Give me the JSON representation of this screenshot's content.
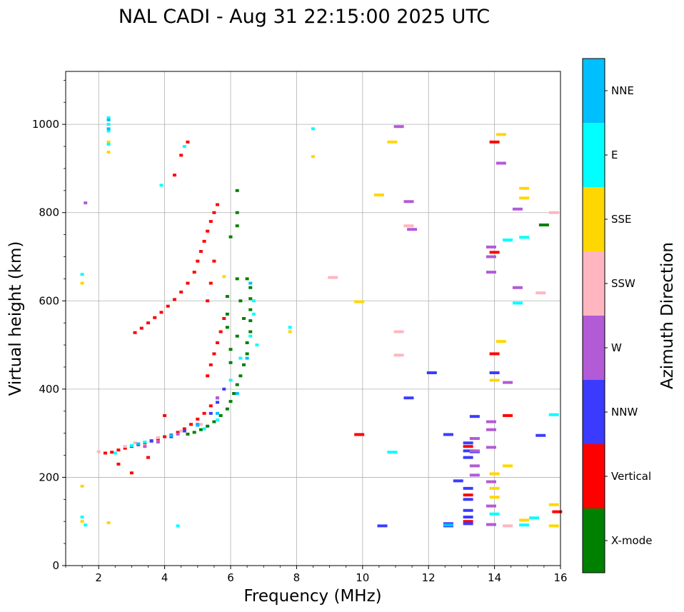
{
  "chart_data": {
    "type": "scatter",
    "title": "NAL CADI - Aug 31 22:15:00 2025 UTC",
    "xlabel": "Frequency (MHz)",
    "ylabel": "Virtual height (km)",
    "xlim": [
      1,
      16
    ],
    "ylim": [
      0,
      1120
    ],
    "xticks": [
      2,
      4,
      6,
      8,
      10,
      12,
      14,
      16
    ],
    "yticks": [
      0,
      200,
      400,
      600,
      800,
      1000
    ],
    "grid": true,
    "colorbar": {
      "label": "Azimuth Direction",
      "categories": [
        "X-mode",
        "Vertical",
        "NNW",
        "W",
        "SSW",
        "SSE",
        "E",
        "NNE"
      ],
      "colors": [
        "#008000",
        "#ff0000",
        "#3b3bff",
        "#b35ad6",
        "#ffb6c1",
        "#ffd700",
        "#00ffff",
        "#00bfff"
      ]
    },
    "series": [
      {
        "name": "Vertical",
        "points": [
          [
            2.2,
            255
          ],
          [
            2.4,
            257
          ],
          [
            2.6,
            262
          ],
          [
            2.8,
            266
          ],
          [
            3.0,
            270
          ],
          [
            3.2,
            274
          ],
          [
            3.4,
            278
          ],
          [
            3.6,
            283
          ],
          [
            3.8,
            287
          ],
          [
            4.0,
            292
          ],
          [
            4.2,
            296
          ],
          [
            4.4,
            302
          ],
          [
            4.6,
            310
          ],
          [
            4.8,
            320
          ],
          [
            5.0,
            332
          ],
          [
            5.2,
            345
          ],
          [
            5.4,
            362
          ],
          [
            5.6,
            380
          ],
          [
            3.1,
            528
          ],
          [
            3.3,
            538
          ],
          [
            3.5,
            550
          ],
          [
            3.7,
            562
          ],
          [
            3.9,
            574
          ],
          [
            4.1,
            588
          ],
          [
            4.3,
            603
          ],
          [
            4.5,
            620
          ],
          [
            4.7,
            640
          ],
          [
            4.9,
            665
          ],
          [
            5.0,
            690
          ],
          [
            5.1,
            712
          ],
          [
            5.2,
            735
          ],
          [
            5.3,
            758
          ],
          [
            5.4,
            780
          ],
          [
            5.5,
            800
          ],
          [
            5.6,
            818
          ],
          [
            5.3,
            430
          ],
          [
            5.4,
            455
          ],
          [
            5.5,
            480
          ],
          [
            5.6,
            505
          ],
          [
            5.7,
            530
          ],
          [
            5.8,
            560
          ],
          [
            4.7,
            960
          ],
          [
            4.5,
            930
          ],
          [
            4.3,
            885
          ],
          [
            5.3,
            600
          ],
          [
            5.4,
            640
          ],
          [
            5.5,
            690
          ],
          [
            2.6,
            230
          ],
          [
            3.0,
            210
          ],
          [
            3.5,
            245
          ],
          [
            4.0,
            340
          ],
          [
            14.0,
            710
          ],
          [
            14.0,
            480
          ],
          [
            14.0,
            960
          ],
          [
            14.4,
            340
          ],
          [
            13.2,
            270
          ],
          [
            13.2,
            160
          ],
          [
            13.2,
            100
          ],
          [
            15.9,
            122
          ],
          [
            9.9,
            297
          ]
        ]
      },
      {
        "name": "X-mode",
        "points": [
          [
            4.7,
            298
          ],
          [
            4.9,
            302
          ],
          [
            5.1,
            308
          ],
          [
            5.3,
            316
          ],
          [
            5.5,
            326
          ],
          [
            5.7,
            340
          ],
          [
            5.9,
            355
          ],
          [
            6.0,
            372
          ],
          [
            6.1,
            390
          ],
          [
            6.2,
            410
          ],
          [
            6.3,
            430
          ],
          [
            6.4,
            455
          ],
          [
            6.5,
            480
          ],
          [
            6.5,
            505
          ],
          [
            6.6,
            530
          ],
          [
            6.6,
            555
          ],
          [
            6.6,
            580
          ],
          [
            6.6,
            605
          ],
          [
            6.6,
            630
          ],
          [
            6.5,
            650
          ],
          [
            6.2,
            650
          ],
          [
            6.3,
            600
          ],
          [
            6.4,
            560
          ],
          [
            6.2,
            520
          ],
          [
            6.0,
            490
          ],
          [
            6.0,
            460
          ],
          [
            6.2,
            800
          ],
          [
            6.2,
            770
          ],
          [
            6.2,
            850
          ],
          [
            6.0,
            745
          ],
          [
            5.9,
            610
          ],
          [
            5.9,
            570
          ],
          [
            5.9,
            540
          ],
          [
            15.5,
            772
          ]
        ]
      },
      {
        "name": "NNW",
        "points": [
          [
            3.2,
            275
          ],
          [
            3.6,
            282
          ],
          [
            4.2,
            292
          ],
          [
            4.6,
            305
          ],
          [
            5.0,
            320
          ],
          [
            5.4,
            345
          ],
          [
            5.6,
            370
          ],
          [
            5.8,
            400
          ],
          [
            12.1,
            437
          ],
          [
            12.6,
            297
          ],
          [
            12.6,
            95
          ],
          [
            12.6,
            90
          ],
          [
            13.2,
            278
          ],
          [
            13.2,
            260
          ],
          [
            13.2,
            245
          ],
          [
            13.2,
            175
          ],
          [
            13.2,
            150
          ],
          [
            13.2,
            125
          ],
          [
            13.2,
            110
          ],
          [
            13.2,
            95
          ],
          [
            13.4,
            338
          ],
          [
            13.4,
            258
          ],
          [
            12.9,
            192
          ],
          [
            14.0,
            437
          ],
          [
            15.4,
            295
          ],
          [
            10.6,
            90
          ],
          [
            11.4,
            380
          ]
        ]
      },
      {
        "name": "W",
        "points": [
          [
            1.6,
            822
          ],
          [
            3.4,
            270
          ],
          [
            3.8,
            280
          ],
          [
            4.4,
            298
          ],
          [
            5.0,
            320
          ],
          [
            5.6,
            380
          ],
          [
            13.4,
            288
          ],
          [
            13.4,
            260
          ],
          [
            13.4,
            226
          ],
          [
            13.4,
            205
          ],
          [
            13.9,
            722
          ],
          [
            13.9,
            700
          ],
          [
            13.9,
            665
          ],
          [
            13.9,
            326
          ],
          [
            13.9,
            308
          ],
          [
            13.9,
            268
          ],
          [
            13.9,
            190
          ],
          [
            13.9,
            135
          ],
          [
            13.9,
            93
          ],
          [
            14.2,
            912
          ],
          [
            14.4,
            415
          ],
          [
            14.7,
            808
          ],
          [
            14.7,
            630
          ],
          [
            11.4,
            825
          ],
          [
            11.5,
            762
          ],
          [
            11.1,
            995
          ]
        ]
      },
      {
        "name": "SSW",
        "points": [
          [
            2.0,
            258
          ],
          [
            2.8,
            270
          ],
          [
            3.1,
            278
          ],
          [
            3.8,
            290
          ],
          [
            4.5,
            305
          ],
          [
            5.1,
            320
          ],
          [
            9.1,
            653
          ],
          [
            11.1,
            530
          ],
          [
            11.1,
            477
          ],
          [
            11.4,
            770
          ],
          [
            14.4,
            90
          ],
          [
            15.4,
            618
          ],
          [
            15.8,
            800
          ]
        ]
      },
      {
        "name": "SSE",
        "points": [
          [
            1.5,
            640
          ],
          [
            1.5,
            180
          ],
          [
            1.5,
            100
          ],
          [
            2.3,
            960
          ],
          [
            2.3,
            937
          ],
          [
            2.3,
            97
          ],
          [
            5.8,
            655
          ],
          [
            7.8,
            530
          ],
          [
            8.5,
            927
          ],
          [
            9.9,
            598
          ],
          [
            10.5,
            840
          ],
          [
            10.9,
            960
          ],
          [
            14.0,
            420
          ],
          [
            14.0,
            208
          ],
          [
            14.0,
            175
          ],
          [
            14.0,
            155
          ],
          [
            14.2,
            977
          ],
          [
            14.2,
            508
          ],
          [
            14.4,
            226
          ],
          [
            14.9,
            855
          ],
          [
            14.9,
            833
          ],
          [
            14.9,
            103
          ],
          [
            15.8,
            138
          ],
          [
            15.8,
            90
          ]
        ]
      },
      {
        "name": "E",
        "points": [
          [
            1.5,
            660
          ],
          [
            1.5,
            110
          ],
          [
            1.6,
            92
          ],
          [
            2.3,
            1015
          ],
          [
            2.3,
            1000
          ],
          [
            2.3,
            985
          ],
          [
            2.3,
            955
          ],
          [
            2.5,
            255
          ],
          [
            3.0,
            272
          ],
          [
            3.4,
            280
          ],
          [
            3.9,
            862
          ],
          [
            4.4,
            90
          ],
          [
            4.6,
            950
          ],
          [
            5.2,
            310
          ],
          [
            5.6,
            330
          ],
          [
            6.0,
            420
          ],
          [
            6.3,
            470
          ],
          [
            6.6,
            520
          ],
          [
            6.7,
            570
          ],
          [
            6.8,
            500
          ],
          [
            6.7,
            600
          ],
          [
            7.8,
            540
          ],
          [
            8.5,
            990
          ],
          [
            10.9,
            257
          ],
          [
            14.0,
            117
          ],
          [
            14.4,
            738
          ],
          [
            14.7,
            595
          ],
          [
            14.9,
            744
          ],
          [
            14.9,
            92
          ],
          [
            15.2,
            108
          ],
          [
            15.8,
            342
          ]
        ]
      },
      {
        "name": "NNE",
        "points": [
          [
            2.3,
            1010
          ],
          [
            2.3,
            990
          ],
          [
            3.2,
            276
          ],
          [
            4.2,
            295
          ],
          [
            5.0,
            318
          ],
          [
            5.6,
            345
          ],
          [
            6.2,
            390
          ],
          [
            6.5,
            470
          ],
          [
            6.6,
            640
          ],
          [
            12.6,
            92
          ]
        ]
      }
    ]
  }
}
